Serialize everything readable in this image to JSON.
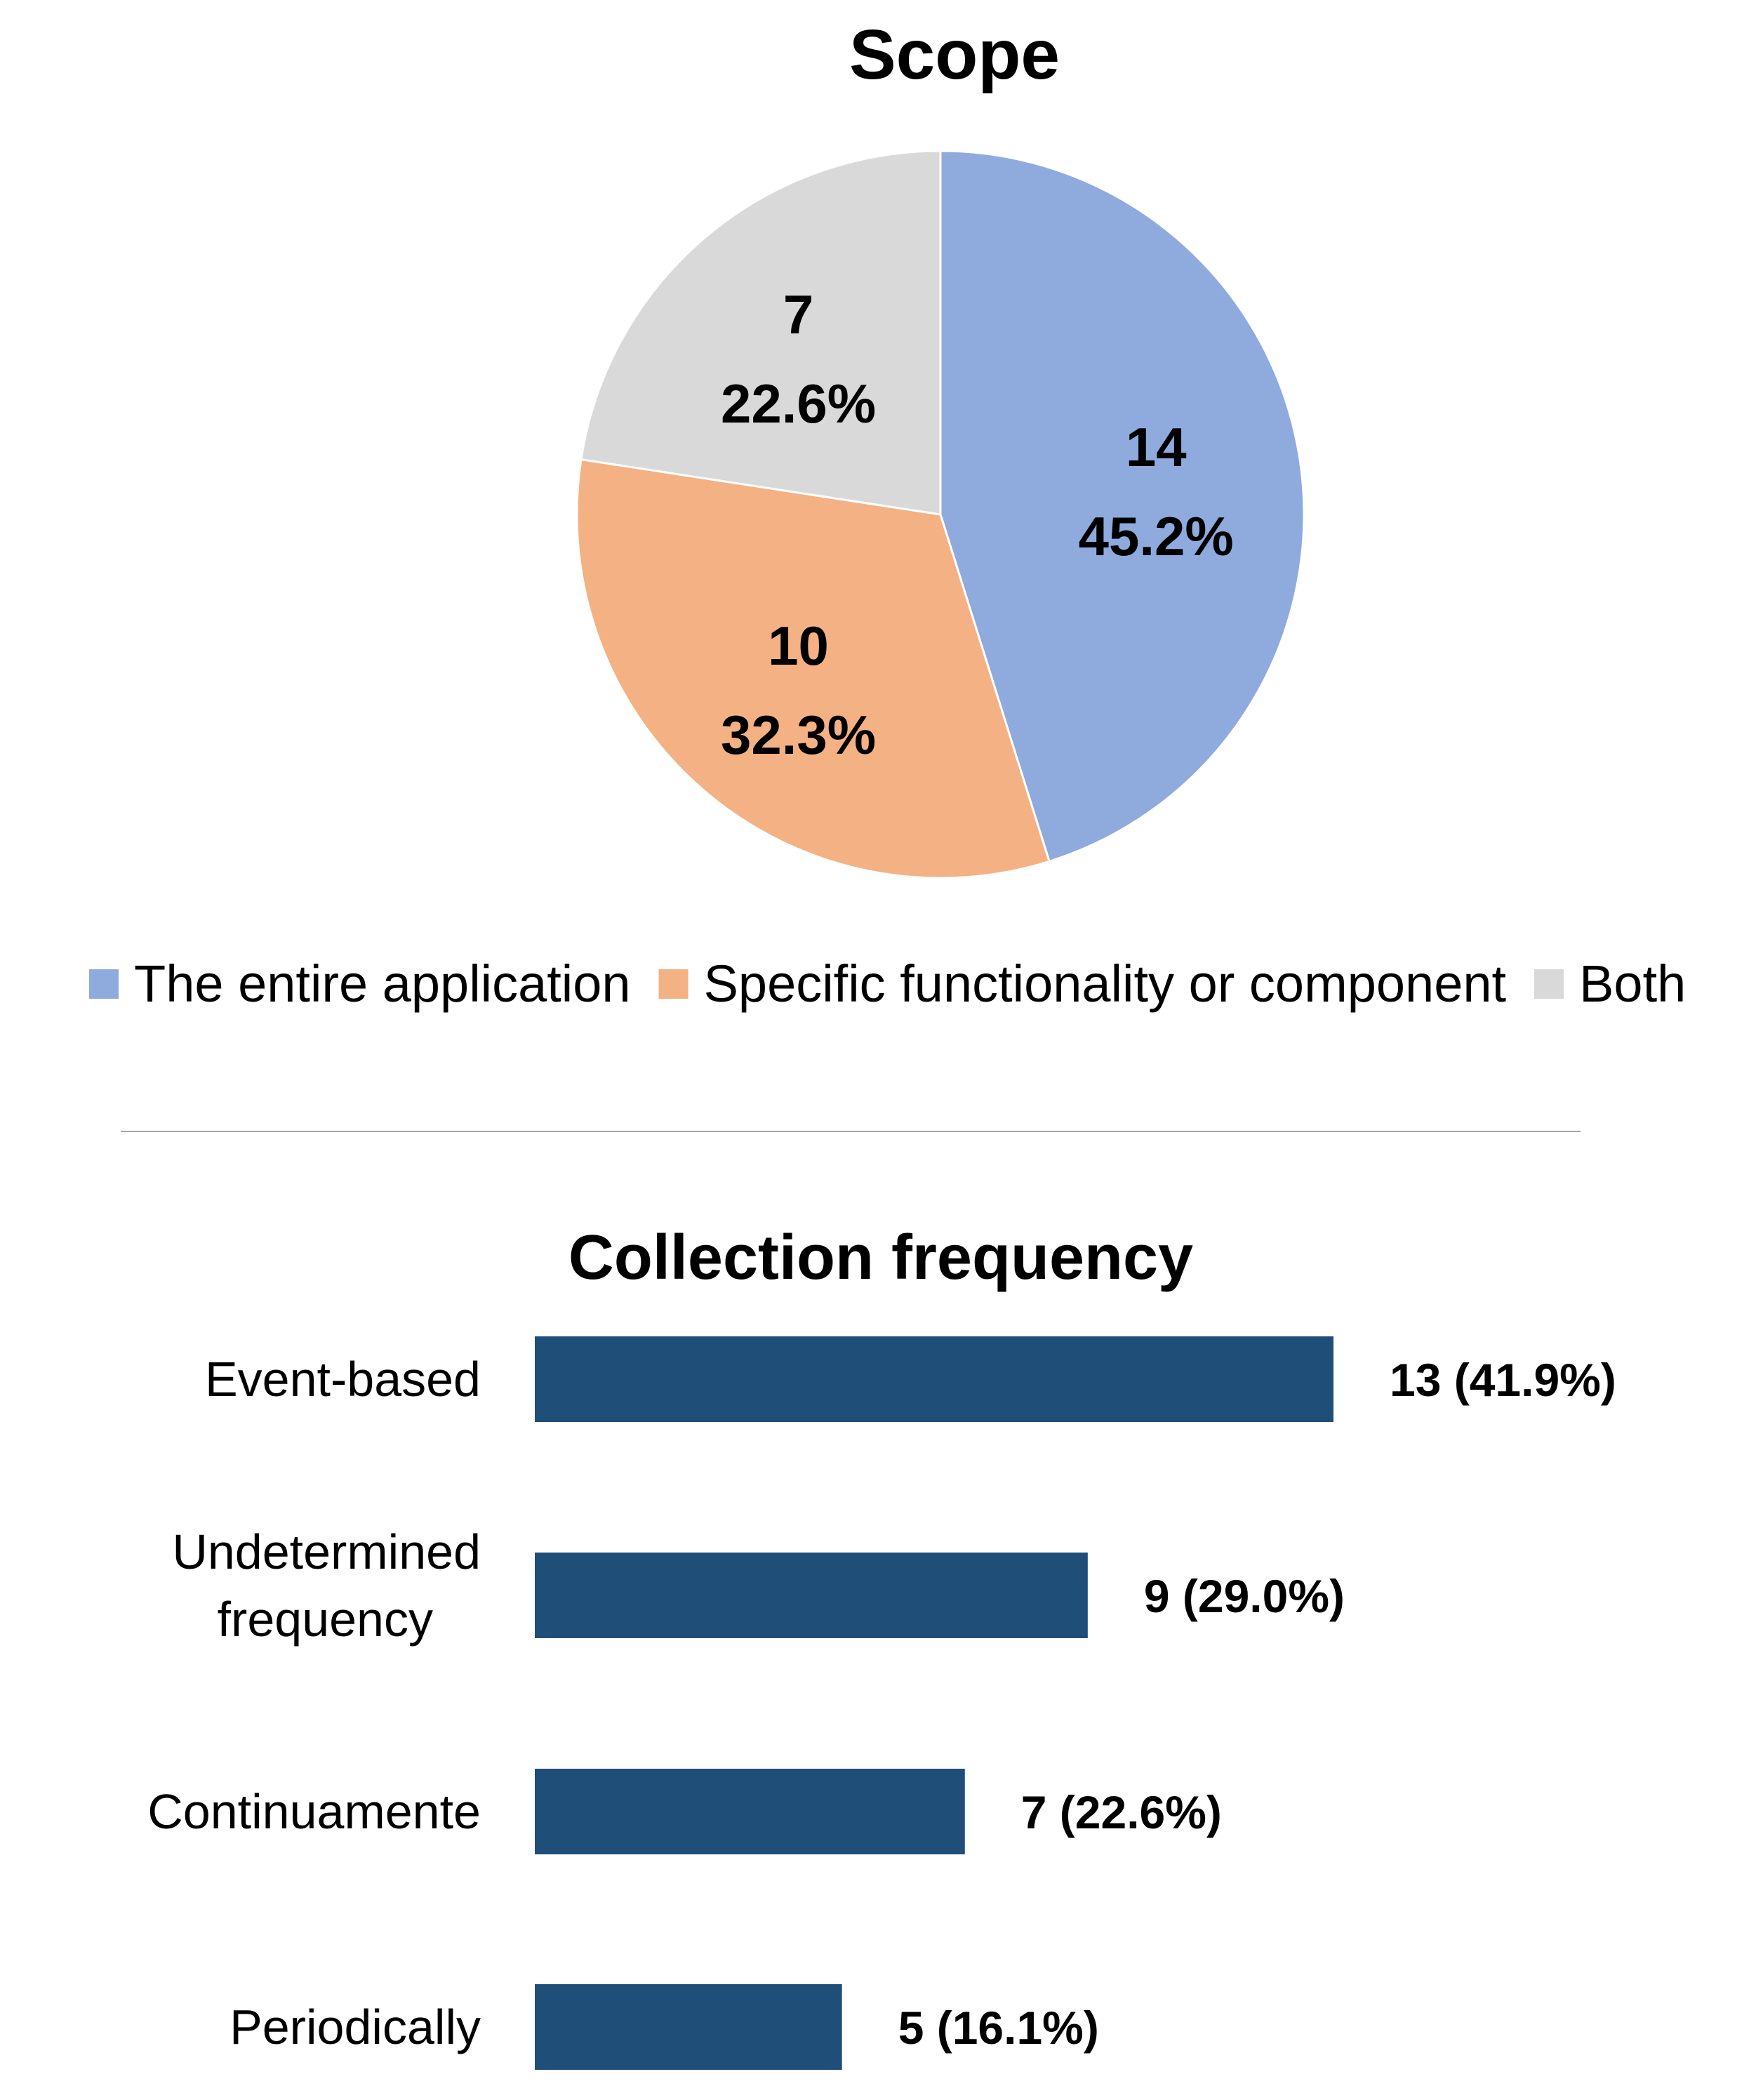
{
  "chart_data": [
    {
      "type": "pie",
      "title": "Scope",
      "slices": [
        {
          "name": "The entire application",
          "value": 14,
          "percent_label": "45.2%",
          "color": "#8FAADC"
        },
        {
          "name": "Specific functionality or component",
          "value": 10,
          "percent_label": "32.3%",
          "color": "#F4B183"
        },
        {
          "name": "Both",
          "value": 7,
          "percent_label": "22.6%",
          "color": "#D9D9D9"
        }
      ],
      "legend_position": "bottom"
    },
    {
      "type": "bar",
      "orientation": "horizontal",
      "title": "Collection frequency",
      "categories": [
        "Event-based",
        "Undetermined frequency",
        "Continuamente",
        "Periodically"
      ],
      "values": [
        13,
        9,
        7,
        5
      ],
      "data_labels": [
        "13 (41.9%)",
        "9 (29.0%)",
        "7 (22.6%)",
        "5 (16.1%)"
      ],
      "color": "#1F4E79",
      "grid": false
    }
  ],
  "divider_color": "#A6A6A6"
}
